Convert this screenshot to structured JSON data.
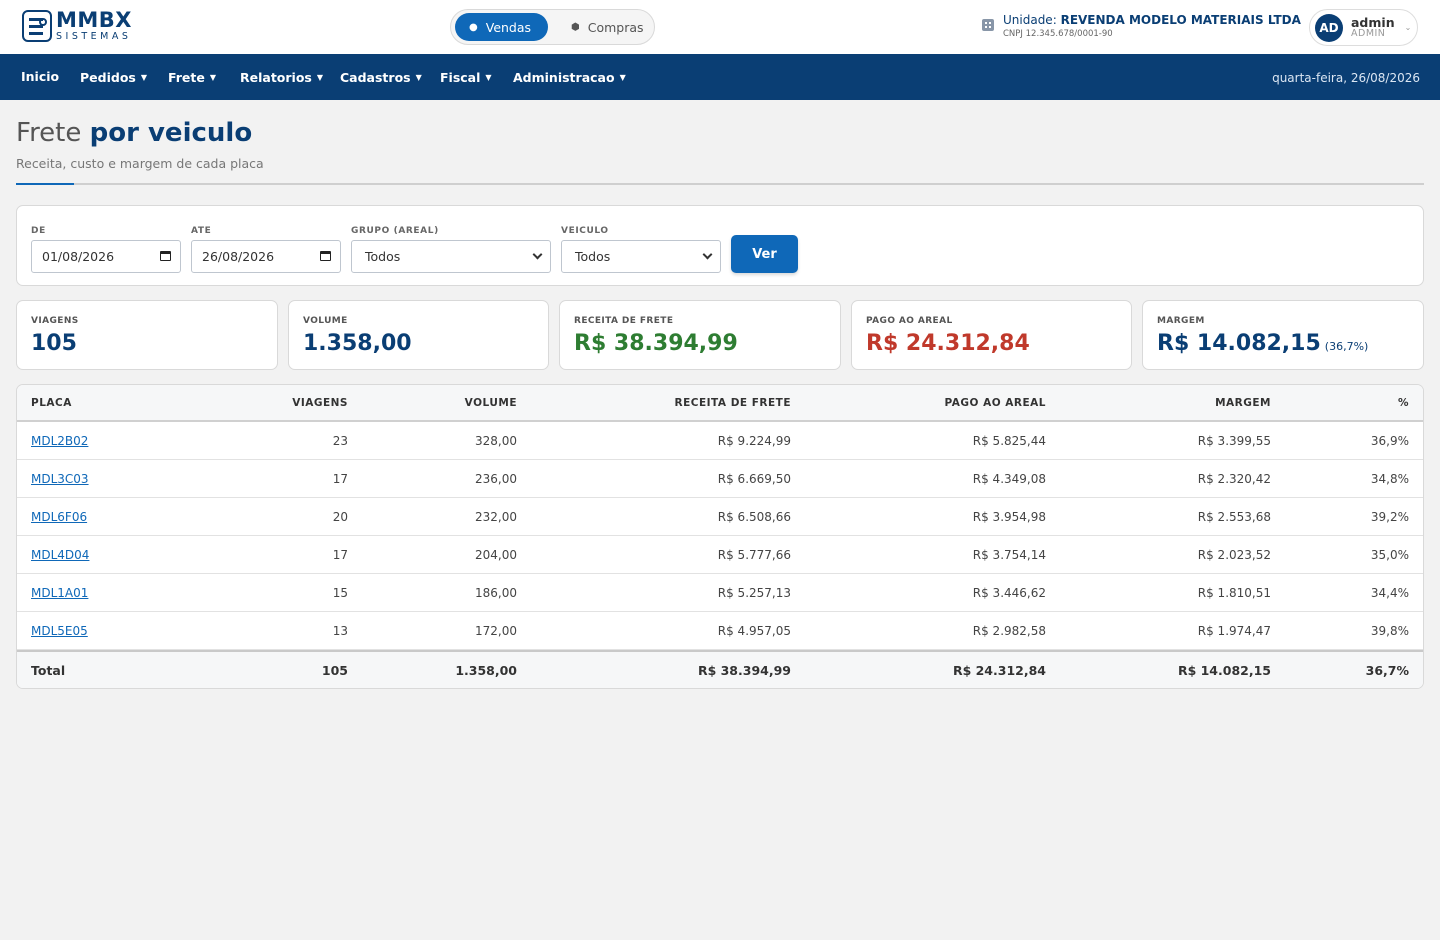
{
  "brand": {
    "name": "MMBX",
    "sub": "SISTEMAS"
  },
  "mode": {
    "vendas": "Vendas",
    "compras": "Compras"
  },
  "unit": {
    "prefix": "Unidade:",
    "name": "REVENDA MODELO MATERIAIS LTDA",
    "cnpj": "CNPJ 12.345.678/0001-90"
  },
  "user": {
    "initials": "AD",
    "name": "admin",
    "role": "ADMIN"
  },
  "nav": {
    "items": [
      "Inicio",
      "Pedidos",
      "Frete",
      "Relatorios",
      "Cadastros",
      "Fiscal",
      "Administracao"
    ],
    "date": "quarta-feira, 26/08/2026"
  },
  "page": {
    "title_plain": "Frete",
    "title_bold": "por veiculo",
    "subtitle": "Receita, custo e margem de cada placa"
  },
  "filters": {
    "de_label": "DE",
    "de_value": "01/08/2026",
    "ate_label": "ATE",
    "ate_value": "26/08/2026",
    "grupo_label": "GRUPO (AREAL)",
    "grupo_value": "Todos",
    "veiculo_label": "VEICULO",
    "veiculo_value": "Todos",
    "button": "Ver"
  },
  "kpis": [
    {
      "label": "VIAGENS",
      "value": "105",
      "color": "#0a3e74"
    },
    {
      "label": "VOLUME",
      "value": "1.358,00",
      "color": "#0a3e74"
    },
    {
      "label": "RECEITA DE FRETE",
      "value": "R$ 38.394,99",
      "color": "#2e7d32"
    },
    {
      "label": "PAGO AO AREAL",
      "value": "R$ 24.312,84",
      "color": "#c0392b"
    },
    {
      "label": "MARGEM",
      "value": "R$ 14.082,15",
      "note": "(36,7%)",
      "color": "#0a3e74"
    }
  ],
  "table": {
    "headers": [
      "PLACA",
      "VIAGENS",
      "VOLUME",
      "RECEITA DE FRETE",
      "PAGO AO AREAL",
      "MARGEM",
      "%"
    ],
    "rows": [
      [
        "MDL2B02",
        "23",
        "328,00",
        "R$ 9.224,99",
        "R$ 5.825,44",
        "R$ 3.399,55",
        "36,9%"
      ],
      [
        "MDL3C03",
        "17",
        "236,00",
        "R$ 6.669,50",
        "R$ 4.349,08",
        "R$ 2.320,42",
        "34,8%"
      ],
      [
        "MDL6F06",
        "20",
        "232,00",
        "R$ 6.508,66",
        "R$ 3.954,98",
        "R$ 2.553,68",
        "39,2%"
      ],
      [
        "MDL4D04",
        "17",
        "204,00",
        "R$ 5.777,66",
        "R$ 3.754,14",
        "R$ 2.023,52",
        "35,0%"
      ],
      [
        "MDL1A01",
        "15",
        "186,00",
        "R$ 5.257,13",
        "R$ 3.446,62",
        "R$ 1.810,51",
        "34,4%"
      ],
      [
        "MDL5E05",
        "13",
        "172,00",
        "R$ 4.957,05",
        "R$ 2.982,58",
        "R$ 1.974,47",
        "39,8%"
      ]
    ],
    "total": [
      "Total",
      "105",
      "1.358,00",
      "R$ 38.394,99",
      "R$ 24.312,84",
      "R$ 14.082,15",
      "36,7%"
    ]
  }
}
